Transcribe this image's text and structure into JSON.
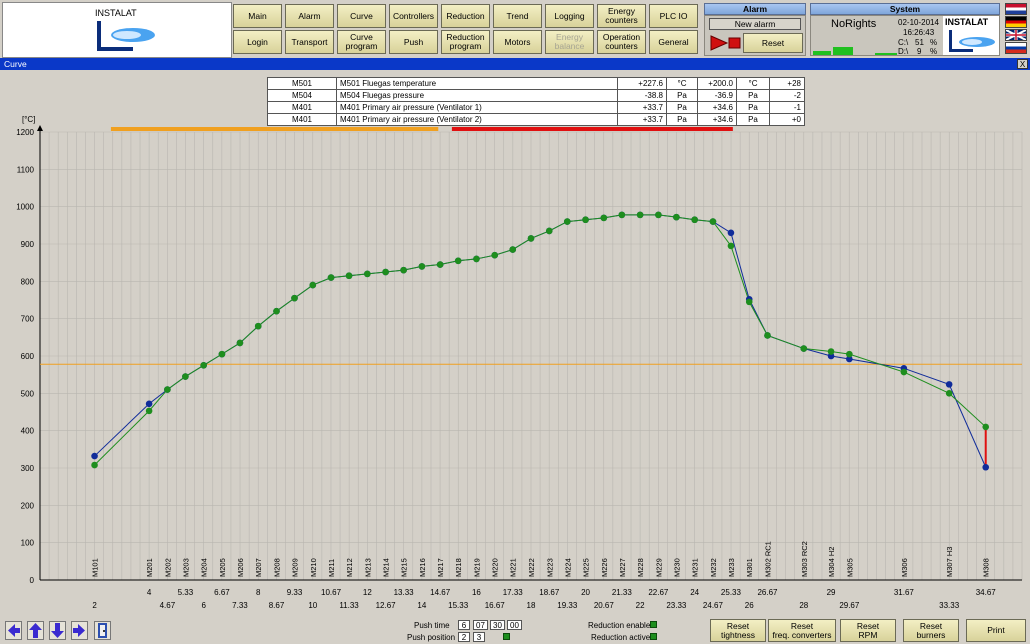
{
  "header": {
    "logo_text": "INSTALAT",
    "nav_row1": [
      "Main",
      "Alarm",
      "Curve",
      "Controllers",
      "Reduction",
      "Trend",
      "Logging",
      "Energy\ncounters",
      "PLC IO"
    ],
    "nav_row2": [
      "Login",
      "Transport",
      "Curve\nprogram",
      "Push",
      "Reduction\nprogram",
      "Motors",
      "Energy\nbalance",
      "Operation\ncounters",
      "General"
    ]
  },
  "alarm": {
    "title": "Alarm",
    "new_alarm": "New alarm",
    "reset": "Reset"
  },
  "system": {
    "title": "System",
    "user": "NoRights",
    "date": "02-10-2014",
    "time": "16:26:43",
    "c_label": "C:\\",
    "c_value": "51",
    "d_label": "D:\\",
    "d_value": "9",
    "pct": "%"
  },
  "window": {
    "title": "Curve",
    "close": "X"
  },
  "legend": [
    [
      "M501",
      "M501 Fluegas temperature",
      "+227.6",
      "°C",
      "+200.0",
      "°C",
      "+28"
    ],
    [
      "M504",
      "M504 Fluegas pressure",
      "-38.8",
      "Pa",
      "-36.9",
      "Pa",
      "-2"
    ],
    [
      "M401",
      "M401 Primary air pressure (Ventilator 1)",
      "+33.7",
      "Pa",
      "+34.6",
      "Pa",
      "-1"
    ],
    [
      "M401",
      "M401 Primary air pressure (Ventilator 2)",
      "+33.7",
      "Pa",
      "+34.6",
      "Pa",
      "+0"
    ]
  ],
  "chart_data": {
    "type": "line",
    "ylabel": "[°C]",
    "ylim": [
      0,
      1200
    ],
    "yticks": [
      0,
      100,
      200,
      300,
      400,
      500,
      600,
      700,
      800,
      900,
      1000,
      1100,
      1200
    ],
    "xlim": [
      0,
      36
    ],
    "threshold": 578,
    "zones": [
      {
        "x0": 2.6,
        "x1": 14.6,
        "color": "#f0a020"
      },
      {
        "x0": 15.1,
        "x1": 25.4,
        "color": "#e01010"
      }
    ],
    "x_top": [
      4,
      5.33,
      6.67,
      8,
      9.33,
      10.67,
      12,
      13.33,
      14.67,
      16,
      17.33,
      18.67,
      20,
      21.33,
      22.67,
      24,
      25.33,
      26.67,
      29,
      31.67,
      34.67
    ],
    "x_bottom": [
      2,
      4.67,
      6,
      7.33,
      8.67,
      10,
      11.33,
      12.67,
      14,
      15.33,
      16.67,
      18,
      19.33,
      20.67,
      22,
      23.33,
      24.67,
      26,
      28,
      29.67,
      33.33
    ],
    "sensors": [
      {
        "x": 2,
        "label": "M101"
      },
      {
        "x": 4,
        "label": "M201"
      },
      {
        "x": 4.67,
        "label": "M202"
      },
      {
        "x": 5.33,
        "label": "M203"
      },
      {
        "x": 6,
        "label": "M204"
      },
      {
        "x": 6.67,
        "label": "M205"
      },
      {
        "x": 7.33,
        "label": "M206"
      },
      {
        "x": 8,
        "label": "M207"
      },
      {
        "x": 8.67,
        "label": "M208"
      },
      {
        "x": 9.33,
        "label": "M209"
      },
      {
        "x": 10,
        "label": "M210"
      },
      {
        "x": 10.67,
        "label": "M211"
      },
      {
        "x": 11.33,
        "label": "M212"
      },
      {
        "x": 12,
        "label": "M213"
      },
      {
        "x": 12.67,
        "label": "M214"
      },
      {
        "x": 13.33,
        "label": "M215"
      },
      {
        "x": 14,
        "label": "M216"
      },
      {
        "x": 14.67,
        "label": "M217"
      },
      {
        "x": 15.33,
        "label": "M218"
      },
      {
        "x": 16,
        "label": "M219"
      },
      {
        "x": 16.67,
        "label": "M220"
      },
      {
        "x": 17.33,
        "label": "M221"
      },
      {
        "x": 18,
        "label": "M222"
      },
      {
        "x": 18.67,
        "label": "M223"
      },
      {
        "x": 19.33,
        "label": "M224"
      },
      {
        "x": 20,
        "label": "M225"
      },
      {
        "x": 20.67,
        "label": "M226"
      },
      {
        "x": 21.33,
        "label": "M227"
      },
      {
        "x": 22,
        "label": "M228"
      },
      {
        "x": 22.67,
        "label": "M229"
      },
      {
        "x": 23.33,
        "label": "M230"
      },
      {
        "x": 24,
        "label": "M231"
      },
      {
        "x": 24.67,
        "label": "M232"
      },
      {
        "x": 25.33,
        "label": "M233"
      },
      {
        "x": 26,
        "label": "M301"
      },
      {
        "x": 26.67,
        "label": "M302 RC1"
      },
      {
        "x": 28,
        "label": "M303 RC2"
      },
      {
        "x": 29,
        "label": "M304 H2"
      },
      {
        "x": 29.67,
        "label": "M305"
      },
      {
        "x": 31.67,
        "label": "M306"
      },
      {
        "x": 33.33,
        "label": "M307 H3"
      },
      {
        "x": 34.67,
        "label": "M308"
      }
    ],
    "series": [
      {
        "color": "#102c9a",
        "points": [
          [
            2,
            332
          ],
          [
            4,
            472
          ],
          [
            4.67,
            510
          ],
          [
            5.33,
            545
          ],
          [
            6,
            575
          ],
          [
            6.67,
            605
          ],
          [
            7.33,
            635
          ],
          [
            8,
            680
          ],
          [
            8.67,
            720
          ],
          [
            9.33,
            755
          ],
          [
            10,
            790
          ],
          [
            10.67,
            810
          ],
          [
            11.33,
            815
          ],
          [
            12,
            820
          ],
          [
            12.67,
            825
          ],
          [
            13.33,
            830
          ],
          [
            14,
            840
          ],
          [
            14.67,
            845
          ],
          [
            15.33,
            855
          ],
          [
            16,
            860
          ],
          [
            16.67,
            870
          ],
          [
            17.33,
            885
          ],
          [
            18,
            915
          ],
          [
            18.67,
            935
          ],
          [
            19.33,
            960
          ],
          [
            20,
            965
          ],
          [
            20.67,
            970
          ],
          [
            21.33,
            978
          ],
          [
            22,
            978
          ],
          [
            22.67,
            978
          ],
          [
            23.33,
            972
          ],
          [
            24,
            965
          ],
          [
            24.67,
            960
          ],
          [
            25.33,
            930
          ],
          [
            26,
            752
          ],
          [
            26.67,
            655
          ],
          [
            28,
            620
          ],
          [
            29,
            600
          ],
          [
            29.67,
            592
          ],
          [
            31.67,
            567
          ],
          [
            33.33,
            524
          ],
          [
            34.67,
            302
          ]
        ]
      },
      {
        "color": "#1e8e1e",
        "points": [
          [
            2,
            308
          ],
          [
            4,
            453
          ],
          [
            4.67,
            510
          ],
          [
            5.33,
            545
          ],
          [
            6,
            575
          ],
          [
            6.67,
            605
          ],
          [
            7.33,
            635
          ],
          [
            8,
            680
          ],
          [
            8.67,
            720
          ],
          [
            9.33,
            755
          ],
          [
            10,
            790
          ],
          [
            10.67,
            810
          ],
          [
            11.33,
            815
          ],
          [
            12,
            820
          ],
          [
            12.67,
            825
          ],
          [
            13.33,
            830
          ],
          [
            14,
            840
          ],
          [
            14.67,
            845
          ],
          [
            15.33,
            855
          ],
          [
            16,
            860
          ],
          [
            16.67,
            870
          ],
          [
            17.33,
            885
          ],
          [
            18,
            915
          ],
          [
            18.67,
            935
          ],
          [
            19.33,
            960
          ],
          [
            20,
            965
          ],
          [
            20.67,
            970
          ],
          [
            21.33,
            978
          ],
          [
            22,
            978
          ],
          [
            22.67,
            978
          ],
          [
            23.33,
            972
          ],
          [
            24,
            965
          ],
          [
            24.67,
            960
          ],
          [
            25.33,
            895
          ],
          [
            26,
            745
          ],
          [
            26.67,
            655
          ],
          [
            28,
            620
          ],
          [
            29,
            612
          ],
          [
            29.67,
            605
          ],
          [
            31.67,
            557
          ],
          [
            33.33,
            500
          ],
          [
            34.67,
            410
          ]
        ]
      }
    ]
  },
  "bottom": {
    "push_time_label": "Push time",
    "push_time": [
      "6",
      "07",
      "30",
      "00"
    ],
    "push_pos_label": "Push position",
    "push_pos": [
      "2",
      "3"
    ],
    "red_enable": "Reduction enable",
    "red_active": "Reduction active",
    "buttons": [
      "Reset\ntightness",
      "Reset\nfreq. converters",
      "Reset\nRPM",
      "Reset\nburners",
      "Print"
    ]
  }
}
